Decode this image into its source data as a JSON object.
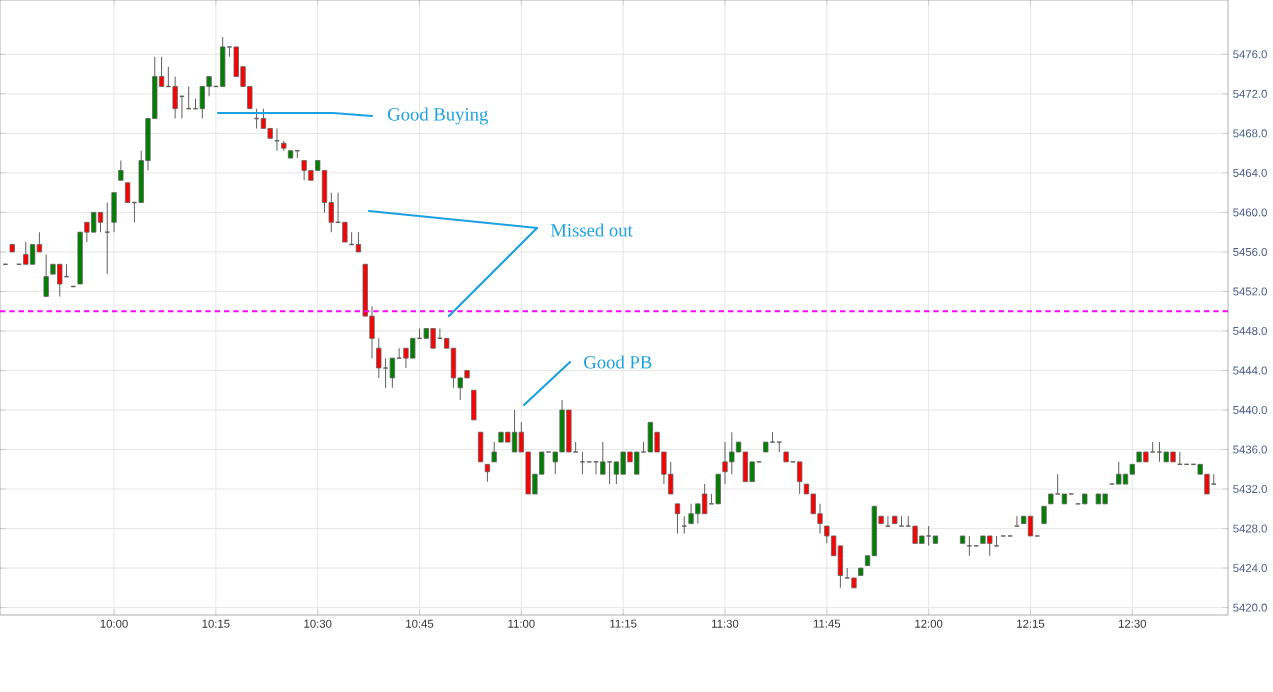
{
  "chart_data": {
    "type": "candlestick",
    "xlim": [
      9.72,
      12.735
    ],
    "ylim": [
      5419.25,
      5481.5
    ],
    "xticks": [
      {
        "value": 10,
        "label": "10:00"
      },
      {
        "value": 10.25,
        "label": "10:15"
      },
      {
        "value": 10.5,
        "label": "10:30"
      },
      {
        "value": 10.75,
        "label": "10:45"
      },
      {
        "value": 11,
        "label": "11:00"
      },
      {
        "value": 11.25,
        "label": "11:15"
      },
      {
        "value": 11.5,
        "label": "11:30"
      },
      {
        "value": 11.75,
        "label": "11:45"
      },
      {
        "value": 12,
        "label": "12:00"
      },
      {
        "value": 12.25,
        "label": "12:15"
      },
      {
        "value": 12.5,
        "label": "12:30"
      }
    ],
    "yticks": [
      {
        "value": 5420,
        "label": "5420.0"
      },
      {
        "value": 5424,
        "label": "5424.0"
      },
      {
        "value": 5428,
        "label": "5428.0"
      },
      {
        "value": 5432,
        "label": "5432.0"
      },
      {
        "value": 5436,
        "label": "5436.0"
      },
      {
        "value": 5440,
        "label": "5440.0"
      },
      {
        "value": 5444,
        "label": "5444.0"
      },
      {
        "value": 5448,
        "label": "5448.0"
      },
      {
        "value": 5452,
        "label": "5452.0"
      },
      {
        "value": 5456,
        "label": "5456.0"
      },
      {
        "value": 5460,
        "label": "5460.0"
      },
      {
        "value": 5464,
        "label": "5464.0"
      },
      {
        "value": 5468,
        "label": "5468.0"
      },
      {
        "value": 5472,
        "label": "5472.0"
      },
      {
        "value": 5476,
        "label": "5476.0"
      }
    ],
    "grid": true,
    "ref_lines": [
      {
        "axis": "y",
        "value": 5450,
        "color": "#ff00ff",
        "line_style": "dashed"
      }
    ],
    "annotations": [
      "Good Buying",
      "Missed out",
      "Good PB"
    ],
    "series": [
      {
        "color": "#008000",
        "x": [
          9.8,
          9.8333,
          9.85,
          9.9167,
          9.95,
          10,
          10.0167,
          10.0667,
          10.0833,
          10.1,
          10.2167,
          10.2333,
          10.2667,
          10.4333,
          10.5,
          10.6833,
          10.7333,
          10.7667,
          10.85,
          10.9333,
          10.95,
          10.9833,
          11.0333,
          11.05,
          11.0833,
          11.1,
          11.2,
          11.2333,
          11.25,
          11.2833,
          11.3167,
          11.4167,
          11.4333,
          11.4833,
          11.5167,
          11.5333,
          11.5667,
          11.6,
          11.8333,
          11.85,
          11.8667,
          11.9833,
          12.0167,
          12.0833,
          12.1333,
          12.2333,
          12.2833,
          12.3,
          12.3333,
          12.3833,
          12.4167,
          12.4333,
          12.4667,
          12.4833,
          12.5,
          12.5167,
          12.5833,
          12.6667
        ],
        "ohlc": [
          [
            5454.75,
            5456.75,
            5454.75,
            5456.75
          ],
          [
            5451.5,
            5455.75,
            5451.5,
            5453.5
          ],
          [
            5453.75,
            5454.75,
            5453.75,
            5454.75
          ],
          [
            5452.75,
            5458,
            5452.75,
            5458
          ],
          [
            5458,
            5460,
            5458,
            5460
          ],
          [
            5459,
            5462,
            5458,
            5462
          ],
          [
            5463.25,
            5465.25,
            5463.25,
            5464.25
          ],
          [
            5461,
            5466.25,
            5461,
            5465.25
          ],
          [
            5465.25,
            5469.5,
            5464.25,
            5469.5
          ],
          [
            5469.5,
            5475.75,
            5469.5,
            5473.75
          ],
          [
            5470.5,
            5472.75,
            5469.5,
            5472.75
          ],
          [
            5472.75,
            5473.75,
            5471.75,
            5473.75
          ],
          [
            5472.75,
            5477.75,
            5472.75,
            5476.75
          ],
          [
            5465.5,
            5466.25,
            5465.5,
            5466.25
          ],
          [
            5464.25,
            5465.25,
            5464.25,
            5465.25
          ],
          [
            5443.25,
            5445.25,
            5442.25,
            5445.25
          ],
          [
            5445.25,
            5447.25,
            5445.25,
            5447.25
          ],
          [
            5447.25,
            5448.25,
            5447.25,
            5448.25
          ],
          [
            5442.25,
            5443.25,
            5441,
            5443.25
          ],
          [
            5434.75,
            5436.75,
            5434.75,
            5435.75
          ],
          [
            5436.75,
            5437.75,
            5436.75,
            5437.75
          ],
          [
            5435.75,
            5440,
            5435.75,
            5437.75
          ],
          [
            5431.5,
            5433.5,
            5431.5,
            5433.5
          ],
          [
            5433.5,
            5435.75,
            5433.5,
            5435.75
          ],
          [
            5434.75,
            5435.75,
            5433.5,
            5435.75
          ],
          [
            5435.75,
            5441,
            5435.75,
            5440
          ],
          [
            5433.5,
            5436.75,
            5433.5,
            5434.75
          ],
          [
            5433.5,
            5434.75,
            5432.5,
            5434.75
          ],
          [
            5433.5,
            5435.75,
            5433.5,
            5435.75
          ],
          [
            5433.5,
            5435.75,
            5433.5,
            5435.75
          ],
          [
            5435.75,
            5438.75,
            5435.75,
            5438.75
          ],
          [
            5428.5,
            5430.5,
            5428.5,
            5429.5
          ],
          [
            5429.5,
            5430.5,
            5428.5,
            5430.5
          ],
          [
            5430.5,
            5433.5,
            5430.5,
            5433.5
          ],
          [
            5434.75,
            5437.75,
            5433.5,
            5435.75
          ],
          [
            5435.75,
            5436.75,
            5435.75,
            5436.75
          ],
          [
            5432.75,
            5434.75,
            5432.75,
            5434.75
          ],
          [
            5435.75,
            5436.75,
            5435.75,
            5436.75
          ],
          [
            5423.25,
            5424,
            5423.25,
            5424
          ],
          [
            5424.25,
            5425.25,
            5424.25,
            5425.25
          ],
          [
            5425.25,
            5430.25,
            5425.25,
            5430.25
          ],
          [
            5426.5,
            5427.25,
            5426.5,
            5427.25
          ],
          [
            5426.5,
            5427.25,
            5426.5,
            5427.25
          ],
          [
            5426.5,
            5427.25,
            5426.5,
            5427.25
          ],
          [
            5426.5,
            5427.25,
            5426.5,
            5427.25
          ],
          [
            5428.5,
            5429.25,
            5428.5,
            5429.25
          ],
          [
            5428.5,
            5430.25,
            5428.5,
            5430.25
          ],
          [
            5430.5,
            5431.5,
            5430.5,
            5431.5
          ],
          [
            5430.5,
            5431.5,
            5430.5,
            5431.5
          ],
          [
            5430.5,
            5431.5,
            5430.5,
            5431.5
          ],
          [
            5430.5,
            5431.5,
            5430.5,
            5431.5
          ],
          [
            5430.5,
            5431.5,
            5430.5,
            5431.5
          ],
          [
            5432.5,
            5434.75,
            5432.5,
            5433.5
          ],
          [
            5432.5,
            5433.5,
            5432.5,
            5433.5
          ],
          [
            5433.5,
            5434.5,
            5433.5,
            5434.5
          ],
          [
            5434.75,
            5435.75,
            5434.75,
            5435.75
          ],
          [
            5434.75,
            5435.75,
            5434.75,
            5435.75
          ],
          [
            5433.5,
            5434.5,
            5433.5,
            5434.5
          ]
        ]
      },
      {
        "color": "#ff0000",
        "x": [
          9.75,
          9.7833,
          9.8167,
          9.8667,
          9.9333,
          9.9667,
          10.0333,
          10.1167,
          10.15,
          10.3,
          10.3167,
          10.3333,
          10.3667,
          10.3833,
          10.4167,
          10.4667,
          10.4833,
          10.5167,
          10.5333,
          10.5667,
          10.6,
          10.6167,
          10.6333,
          10.65,
          10.7167,
          10.7833,
          10.8167,
          10.8333,
          10.8667,
          10.8833,
          10.9,
          10.9167,
          10.9667,
          11,
          11.0167,
          11.1167,
          11.2667,
          11.3333,
          11.35,
          11.3667,
          11.3833,
          11.45,
          11.5,
          11.55,
          11.65,
          11.6833,
          11.7,
          11.7167,
          11.7333,
          11.75,
          11.7667,
          11.7833,
          11.8167,
          11.8833,
          11.9167,
          11.9667,
          12.15,
          12.25,
          12.5333,
          12.6,
          12.6833
        ],
        "ohlc": [
          [
            5456.75,
            5456.75,
            5456,
            5456
          ],
          [
            5455.75,
            5457,
            5454.75,
            5454.75
          ],
          [
            5456.75,
            5458,
            5456,
            5456
          ],
          [
            5454.75,
            5454.75,
            5451.5,
            5452.75
          ],
          [
            5459,
            5459,
            5457,
            5458
          ],
          [
            5460,
            5460,
            5458,
            5459
          ],
          [
            5463,
            5463,
            5461,
            5461
          ],
          [
            5473.75,
            5475.75,
            5472.75,
            5472.75
          ],
          [
            5472.75,
            5473.75,
            5469.5,
            5470.5
          ],
          [
            5476.75,
            5476.75,
            5473.75,
            5473.75
          ],
          [
            5474.75,
            5474.75,
            5472.75,
            5472.75
          ],
          [
            5472.75,
            5472.75,
            5470.5,
            5470.5
          ],
          [
            5469.5,
            5470.5,
            5468.5,
            5468.5
          ],
          [
            5468.5,
            5468.5,
            5467.5,
            5467.5
          ],
          [
            5467,
            5467.25,
            5466.25,
            5466.5
          ],
          [
            5465.25,
            5465.25,
            5463.25,
            5464.25
          ],
          [
            5464.25,
            5464.25,
            5463.25,
            5463.25
          ],
          [
            5464.25,
            5464.25,
            5460,
            5461
          ],
          [
            5461,
            5462,
            5458,
            5459
          ],
          [
            5459,
            5459,
            5457,
            5457
          ],
          [
            5456.75,
            5458,
            5456,
            5456
          ],
          [
            5454.75,
            5454.75,
            5449.5,
            5449.5
          ],
          [
            5449.5,
            5450.5,
            5445.25,
            5447.25
          ],
          [
            5446.25,
            5447.25,
            5443.25,
            5444.25
          ],
          [
            5446.25,
            5446.25,
            5444.25,
            5445.25
          ],
          [
            5448.25,
            5448.25,
            5446.25,
            5446.25
          ],
          [
            5447.25,
            5447.25,
            5446.25,
            5446.25
          ],
          [
            5446.25,
            5446.25,
            5442.25,
            5443.25
          ],
          [
            5444,
            5444,
            5443.25,
            5443.25
          ],
          [
            5442,
            5442,
            5439,
            5439
          ],
          [
            5437.75,
            5437.75,
            5434.75,
            5434.75
          ],
          [
            5434.5,
            5434.5,
            5432.75,
            5433.75
          ],
          [
            5437.75,
            5437.75,
            5436.75,
            5436.75
          ],
          [
            5437.75,
            5438.75,
            5435.75,
            5435.75
          ],
          [
            5435.75,
            5435.75,
            5431.5,
            5431.5
          ],
          [
            5440,
            5440,
            5435.75,
            5435.75
          ],
          [
            5435.75,
            5435.75,
            5434.75,
            5434.75
          ],
          [
            5437.75,
            5437.75,
            5435.75,
            5435.75
          ],
          [
            5435.75,
            5435.75,
            5432.5,
            5433.5
          ],
          [
            5433.5,
            5434.75,
            5431.5,
            5431.5
          ],
          [
            5430.5,
            5430.5,
            5427.5,
            5429.5
          ],
          [
            5431.5,
            5432.5,
            5429.5,
            5429.5
          ],
          [
            5434.75,
            5436.75,
            5432.5,
            5433.75
          ],
          [
            5435.75,
            5435.75,
            5432.75,
            5432.75
          ],
          [
            5435.75,
            5435.75,
            5434.75,
            5434.75
          ],
          [
            5434.75,
            5434.75,
            5431.5,
            5432.75
          ],
          [
            5432.5,
            5432.5,
            5431.5,
            5431.5
          ],
          [
            5431.5,
            5431.5,
            5429.5,
            5429.5
          ],
          [
            5429.5,
            5430.5,
            5427.5,
            5428.5
          ],
          [
            5428.25,
            5428.25,
            5426.5,
            5427.25
          ],
          [
            5427.25,
            5427.25,
            5425.25,
            5425.25
          ],
          [
            5426.25,
            5426.25,
            5422,
            5423.25
          ],
          [
            5423,
            5423,
            5422,
            5422
          ],
          [
            5429.25,
            5429.25,
            5428.5,
            5428.5
          ],
          [
            5429.25,
            5429.25,
            5428.5,
            5428.5
          ],
          [
            5428.25,
            5428.25,
            5426.5,
            5426.5
          ],
          [
            5427.25,
            5427.25,
            5425.25,
            5426.5
          ],
          [
            5429.25,
            5429.25,
            5427.25,
            5427.25
          ],
          [
            5435.75,
            5435.75,
            5434.75,
            5434.75
          ],
          [
            5435.75,
            5435.75,
            5434.75,
            5434.75
          ],
          [
            5433.5,
            5433.5,
            5431.5,
            5431.5
          ]
        ]
      },
      {
        "color": "#606060",
        "x": [
          9.7333,
          9.7667,
          9.8833,
          9.9,
          9.9833,
          10.05,
          10.1333,
          10.1667,
          10.1833,
          10.2,
          10.25,
          10.2833,
          10.35,
          10.4,
          10.45,
          10.55,
          10.5833,
          10.6667,
          10.7,
          10.75,
          10.8,
          11.0667,
          11.1333,
          11.15,
          11.1667,
          11.1833,
          11.2167,
          11.3,
          11.4,
          11.4667,
          11.5833,
          11.6167,
          11.6333,
          11.6667,
          11.8,
          11.9,
          11.9333,
          11.95,
          12,
          12.1,
          12.1167,
          12.1667,
          12.1833,
          12.2,
          12.2167,
          12.2667,
          12.3167,
          12.35,
          12.3667,
          12.45,
          12.55,
          12.5667,
          12.6167,
          12.6333,
          12.65,
          12.7
        ],
        "ohlc": [
          [
            5454.75,
            5454.75,
            5454.75,
            5454.75
          ],
          [
            5454.75,
            5454.75,
            5454.75,
            5454.75
          ],
          [
            5453.5,
            5454.75,
            5453.5,
            5453.5
          ],
          [
            5452.5,
            5452.5,
            5452.5,
            5452.5
          ],
          [
            5458,
            5461,
            5453.75,
            5458
          ],
          [
            5461,
            5461,
            5459,
            5461
          ],
          [
            5472.75,
            5474.75,
            5472.75,
            5472.75
          ],
          [
            5471.75,
            5471.75,
            5469.5,
            5471.75
          ],
          [
            5470.5,
            5472.75,
            5470.5,
            5470.5
          ],
          [
            5470.5,
            5471.5,
            5470.5,
            5470.5
          ],
          [
            5472.75,
            5472.75,
            5472.75,
            5472.75
          ],
          [
            5476.75,
            5476.75,
            5475.75,
            5476.75
          ],
          [
            5469.5,
            5470.5,
            5468.5,
            5469.5
          ],
          [
            5467.25,
            5468.5,
            5466.25,
            5467.25
          ],
          [
            5466.25,
            5466.25,
            5465.5,
            5466.25
          ],
          [
            5459,
            5462,
            5459,
            5459
          ],
          [
            5456.75,
            5458,
            5456.75,
            5456.75
          ],
          [
            5444.25,
            5445.25,
            5442.25,
            5444.25
          ],
          [
            5445.25,
            5446.25,
            5445.25,
            5445.25
          ],
          [
            5447.25,
            5448.25,
            5447.25,
            5447.25
          ],
          [
            5447.25,
            5448.25,
            5447.25,
            5447.25
          ],
          [
            5435.75,
            5435.75,
            5435.75,
            5435.75
          ],
          [
            5435.75,
            5436.75,
            5435.75,
            5435.75
          ],
          [
            5434.75,
            5435.75,
            5433.5,
            5434.75
          ],
          [
            5434.75,
            5434.75,
            5434.75,
            5434.75
          ],
          [
            5434.75,
            5434.75,
            5433.5,
            5434.75
          ],
          [
            5434.75,
            5434.75,
            5432.5,
            5434.75
          ],
          [
            5435.75,
            5436.75,
            5435.75,
            5435.75
          ],
          [
            5428.25,
            5429.25,
            5427.5,
            5428.25
          ],
          [
            5430.5,
            5431.5,
            5430.5,
            5430.5
          ],
          [
            5434.75,
            5434.75,
            5434.75,
            5434.75
          ],
          [
            5436.75,
            5437.75,
            5436.75,
            5436.75
          ],
          [
            5436.75,
            5436.75,
            5435.75,
            5436.75
          ],
          [
            5434.75,
            5434.75,
            5434.75,
            5434.75
          ],
          [
            5423,
            5424,
            5423,
            5423
          ],
          [
            5428.25,
            5429.25,
            5428.25,
            5428.25
          ],
          [
            5428.25,
            5429.25,
            5428.25,
            5428.25
          ],
          [
            5428.25,
            5429.25,
            5428.25,
            5428.25
          ],
          [
            5427.25,
            5428.25,
            5426.25,
            5427.25
          ],
          [
            5426.25,
            5427.25,
            5425.25,
            5426.25
          ],
          [
            5426.25,
            5426.25,
            5426.25,
            5426.25
          ],
          [
            5426.25,
            5427.25,
            5426.25,
            5426.25
          ],
          [
            5427.25,
            5427.25,
            5427.25,
            5427.25
          ],
          [
            5427.25,
            5427.25,
            5427.25,
            5427.25
          ],
          [
            5428.25,
            5429.25,
            5428.25,
            5428.25
          ],
          [
            5427.25,
            5427.25,
            5427.25,
            5427.25
          ],
          [
            5431.5,
            5433.5,
            5431.5,
            5431.5
          ],
          [
            5431.5,
            5431.5,
            5431.5,
            5431.5
          ],
          [
            5430.5,
            5430.5,
            5430.5,
            5430.5
          ],
          [
            5432.5,
            5432.5,
            5432.5,
            5432.5
          ],
          [
            5435.75,
            5436.75,
            5435.75,
            5435.75
          ],
          [
            5435.75,
            5436.75,
            5434.75,
            5435.75
          ],
          [
            5434.5,
            5435.75,
            5434.5,
            5434.5
          ],
          [
            5434.5,
            5434.5,
            5434.5,
            5434.5
          ],
          [
            5434.5,
            5434.5,
            5434.5,
            5434.5
          ],
          [
            5432.5,
            5433.5,
            5432.5,
            5432.5
          ]
        ]
      }
    ]
  }
}
